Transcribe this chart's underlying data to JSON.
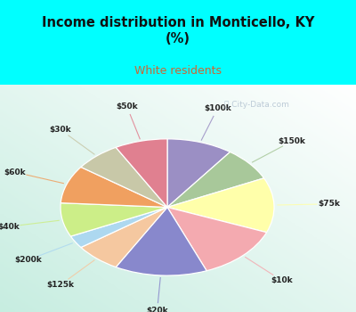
{
  "title": "Income distribution in Monticello, KY\n(%)",
  "subtitle": "White residents",
  "title_color": "#111111",
  "subtitle_color": "#cc6633",
  "bg_cyan": "#00ffff",
  "watermark": "City-Data.com",
  "labels": [
    "$100k",
    "$150k",
    "$75k",
    "$10k",
    "$20k",
    "$125k",
    "$200k",
    "$40k",
    "$60k",
    "$30k",
    "$50k"
  ],
  "values": [
    10,
    8,
    13,
    13,
    14,
    7,
    3,
    8,
    9,
    7,
    8
  ],
  "colors": [
    "#9b8fc4",
    "#a8c89a",
    "#ffffaa",
    "#f4aab0",
    "#8888cc",
    "#f5c8a0",
    "#add8f0",
    "#ccee88",
    "#f0a060",
    "#c8c8a8",
    "#e08090"
  ],
  "figsize": [
    4.0,
    3.5
  ],
  "dpi": 100
}
